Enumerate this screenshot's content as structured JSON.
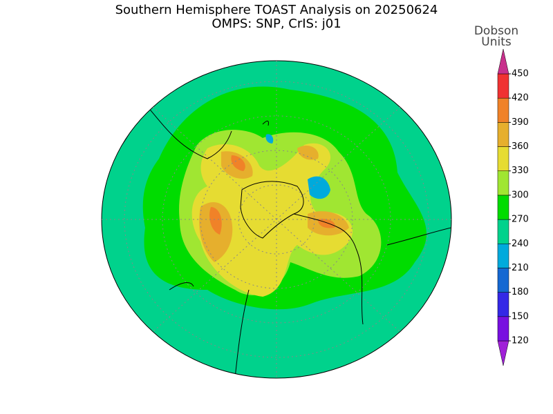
{
  "title": "Southern Hemisphere TOAST Analysis on 20250624",
  "subtitle": "OMPS: SNP, CrIS: j01",
  "colorbar": {
    "label_lines": [
      "Dobson",
      "Units"
    ],
    "ticks": [
      120,
      150,
      180,
      210,
      240,
      270,
      300,
      330,
      360,
      390,
      420,
      450
    ],
    "colors": [
      "#a020d8",
      "#7810e0",
      "#3428e6",
      "#1468d2",
      "#00aadc",
      "#00d28c",
      "#00dc00",
      "#a0e632",
      "#e6dc32",
      "#e6af2d",
      "#f08228",
      "#f03232",
      "#c8308c"
    ]
  }
}
